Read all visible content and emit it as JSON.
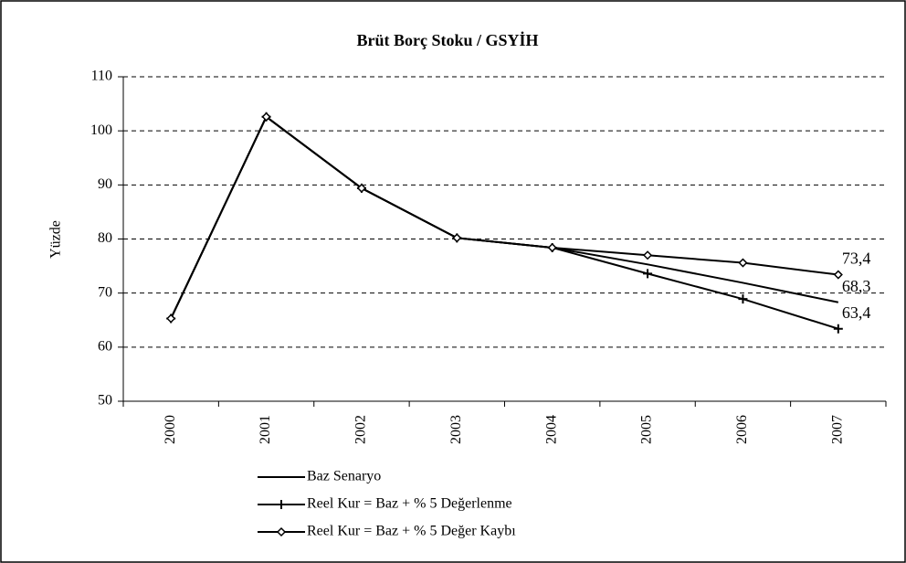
{
  "chart_data": {
    "type": "line",
    "title": "Brüt Borç Stoku  / GSYİH",
    "y_label": "Yüzde",
    "categories": [
      "2000",
      "2001",
      "2002",
      "2003",
      "2004",
      "2005",
      "2006",
      "2007"
    ],
    "series": [
      {
        "name": "Baz Senaryo",
        "color": "#000000",
        "marker": "none",
        "values": [
          65.3,
          102.6,
          89.4,
          80.2,
          78.4,
          75.3,
          71.9,
          68.3
        ],
        "value_labels": [
          null,
          null,
          null,
          null,
          null,
          null,
          null,
          "68,3"
        ]
      },
      {
        "name": "Reel Kur = Baz + % 5 Değerlenme",
        "color": "#000000",
        "marker": "plus",
        "values": [
          65.3,
          102.6,
          89.4,
          80.2,
          78.4,
          73.6,
          68.9,
          63.4
        ],
        "value_labels": [
          null,
          null,
          null,
          null,
          null,
          null,
          null,
          "63,4"
        ]
      },
      {
        "name": "Reel Kur = Baz + % 5 Değer Kaybı",
        "color": "#000000",
        "marker": "diamond",
        "values": [
          65.3,
          102.6,
          89.4,
          80.2,
          78.4,
          77.0,
          75.6,
          73.4
        ],
        "value_labels": [
          null,
          null,
          null,
          null,
          null,
          null,
          null,
          "73,4"
        ]
      }
    ],
    "ylim": [
      50,
      110
    ],
    "yticks": [
      50,
      60,
      70,
      80,
      90,
      100,
      110
    ],
    "grid": true,
    "legend": "bottom"
  }
}
